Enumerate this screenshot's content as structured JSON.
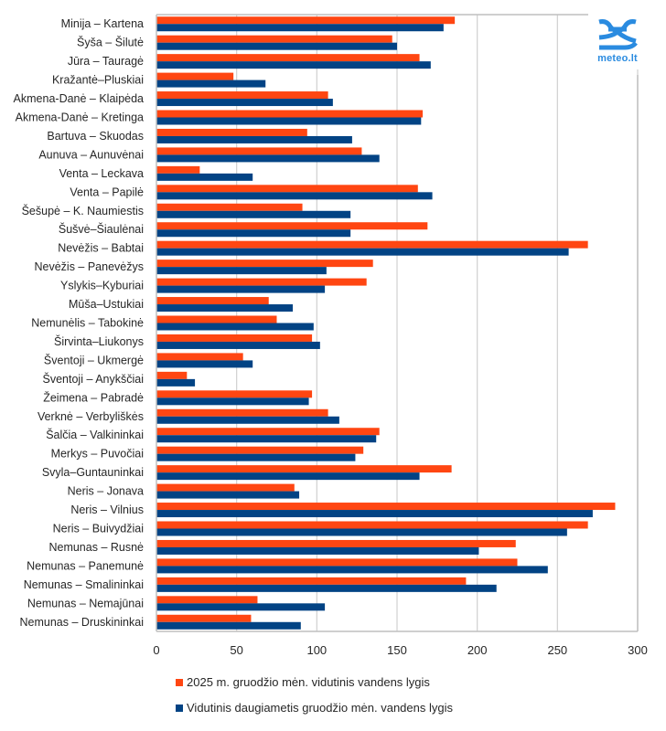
{
  "chart_data": {
    "type": "bar",
    "orientation": "horizontal",
    "title": "",
    "xlabel": "",
    "ylabel": "",
    "xlim": [
      0,
      300
    ],
    "x_ticks": [
      0,
      50,
      100,
      150,
      200,
      250,
      300
    ],
    "grid": true,
    "legend_position": "bottom",
    "categories": [
      "Minija – Kartena",
      "Šyša – Šilutė",
      "Jūra – Tauragė",
      "Kražantė–Pluskiai",
      "Akmena-Danė – Klaipėda",
      "Akmena-Danė – Kretinga",
      "Bartuva – Skuodas",
      "Aunuva – Aunuvėnai",
      "Venta – Leckava",
      "Venta – Papilė",
      "Šešupė – K. Naumiestis",
      "Šušvė–Šiaulėnai",
      "Nevėžis – Babtai",
      "Nevėžis – Panevėžys",
      "Yslykis–Kyburiai",
      "Mūša–Ustukiai",
      "Nemunėlis – Tabokinė",
      "Širvinta–Liukonys",
      "Šventoji – Ukmergė",
      "Šventoji – Anykščiai",
      "Žeimena – Pabradė",
      "Verknė – Verbyliškės",
      "Šalčia – Valkininkai",
      "Merkys – Puvočiai",
      "Svyla–Guntauninkai",
      "Neris – Jonava",
      "Neris – Vilnius",
      "Neris – Buivydžiai",
      "Nemunas – Rusnė",
      "Nemunas – Panemunė",
      "Nemunas – Smalininkai",
      "Nemunas – Nemajūnai",
      "Nemunas – Druskininkai"
    ],
    "series": [
      {
        "name": "2025 m. gruodžio mėn. vidutinis vandens lygis",
        "color": "#ff4612",
        "values": [
          186,
          147,
          164,
          48,
          107,
          166,
          94,
          128,
          27,
          163,
          91,
          169,
          269,
          135,
          131,
          70,
          75,
          97,
          54,
          19,
          97,
          107,
          139,
          129,
          184,
          86,
          286,
          269,
          224,
          225,
          193,
          63,
          59
        ]
      },
      {
        "name": "Vidutinis daugiametis gruodžio mėn. vandens lygis",
        "color": "#024384",
        "values": [
          179,
          150,
          171,
          68,
          110,
          165,
          122,
          139,
          60,
          172,
          121,
          121,
          257,
          106,
          105,
          85,
          98,
          102,
          60,
          24,
          95,
          114,
          137,
          124,
          164,
          89,
          272,
          256,
          201,
          244,
          212,
          105,
          90
        ]
      }
    ]
  },
  "logo": {
    "icon": "meteo-waves-logo-icon",
    "text": "meteo.lt",
    "color": "#2a8be0"
  }
}
